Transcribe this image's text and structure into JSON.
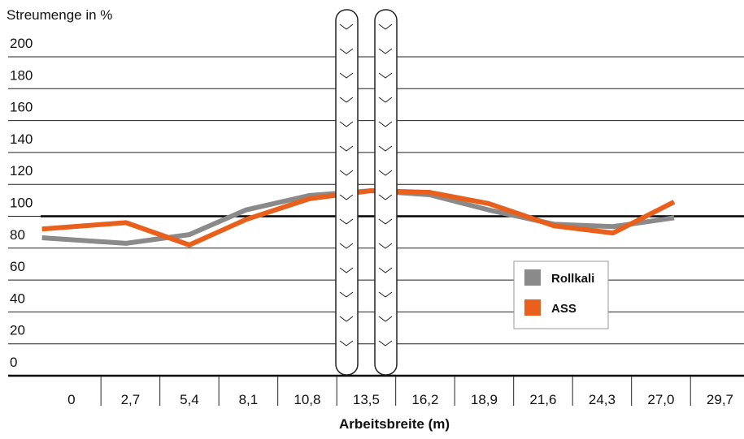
{
  "chart_data": {
    "type": "line",
    "ylabel": "Streumenge in %",
    "xlabel": "Arbeitsbreite (m)",
    "ylim": [
      0,
      200
    ],
    "yticks": [
      0,
      20,
      40,
      60,
      80,
      100,
      120,
      140,
      160,
      180,
      200
    ],
    "xlim": [
      -2.9,
      30.8
    ],
    "xticks": [
      {
        "value": 0,
        "label": "0"
      },
      {
        "value": 2.7,
        "label": "2,7"
      },
      {
        "value": 5.4,
        "label": "5,4"
      },
      {
        "value": 8.1,
        "label": "8,1"
      },
      {
        "value": 10.8,
        "label": "10,8"
      },
      {
        "value": 13.5,
        "label": "13,5"
      },
      {
        "value": 16.2,
        "label": "16,2"
      },
      {
        "value": 18.9,
        "label": "18,9"
      },
      {
        "value": 21.6,
        "label": "21,6"
      },
      {
        "value": 24.3,
        "label": "24,3"
      },
      {
        "value": 27.0,
        "label": "27,0"
      },
      {
        "value": 29.7,
        "label": "29,7"
      }
    ],
    "ref_line": 100,
    "grid": true,
    "x": [
      -1.35,
      2.5,
      5.4,
      8.0,
      10.9,
      13.7,
      16.4,
      19.1,
      22.1,
      24.8,
      27.6
    ],
    "series": [
      {
        "name": "Rollkali",
        "color": "#8a8a8a",
        "values": [
          86.5,
          83,
          88.5,
          104,
          113,
          116,
          113.5,
          104,
          95,
          93.5,
          99
        ]
      },
      {
        "name": "ASS",
        "color": "#e8601c",
        "values": [
          92,
          96,
          82,
          98,
          111,
          116,
          115,
          108,
          94,
          89.5,
          109
        ]
      }
    ]
  }
}
